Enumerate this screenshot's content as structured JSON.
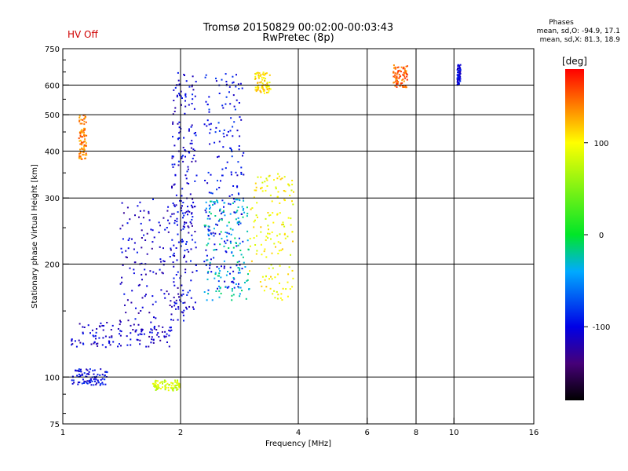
{
  "header": {
    "status": "HV Off",
    "title": "Tromsø 20150829 00:02:00-00:03:43",
    "subtitle": "RwPretec (8p)",
    "stats_title": "Phases",
    "stats_o": "mean, sd,O: -94.9, 17.1",
    "stats_x": "mean, sd,X:  81.3, 18.9"
  },
  "chart_data": {
    "type": "scatter",
    "xlabel": "Frequency [MHz]",
    "ylabel": "Stationary phase Virtual Height [km]",
    "x_scale": "log",
    "y_scale": "log",
    "xlim": [
      1,
      16
    ],
    "ylim": [
      75,
      750
    ],
    "x_ticks": [
      1,
      2,
      4,
      6,
      8,
      10,
      16
    ],
    "y_ticks": [
      75,
      100,
      200,
      300,
      400,
      500,
      600,
      750
    ],
    "x_gridlines": [
      2,
      4,
      6,
      8,
      10
    ],
    "y_gridlines": [
      100,
      200,
      300,
      400,
      500,
      600
    ],
    "colorbar": {
      "label": "[deg]",
      "range": [
        -180,
        180
      ],
      "ticks": [
        100,
        0,
        -100
      ]
    },
    "series": [
      {
        "color_phase_deg": -110,
        "x_range": [
          1.05,
          1.9
        ],
        "y_range": [
          120,
          140
        ]
      },
      {
        "color_phase_deg": -110,
        "x_range": [
          1.4,
          2.1
        ],
        "y_range": [
          140,
          300
        ]
      },
      {
        "color_phase_deg": -105,
        "x_range": [
          1.9,
          2.2
        ],
        "y_range": [
          150,
          650
        ]
      },
      {
        "color_phase_deg": -95,
        "x_range": [
          2.3,
          2.9
        ],
        "y_range": [
          170,
          650
        ]
      },
      {
        "color_phase_deg": -30,
        "x_range": [
          2.3,
          3.0
        ],
        "y_range": [
          160,
          300
        ]
      },
      {
        "color_phase_deg": 100,
        "x_range": [
          3.0,
          3.9
        ],
        "y_range": [
          160,
          350
        ]
      },
      {
        "color_phase_deg": 110,
        "x_range": [
          3.1,
          3.4
        ],
        "y_range": [
          570,
          650
        ]
      },
      {
        "color_phase_deg": 80,
        "x_range": [
          1.7,
          2.0
        ],
        "y_range": [
          92,
          98
        ]
      },
      {
        "color_phase_deg": -100,
        "x_range": [
          1.05,
          1.3
        ],
        "y_range": [
          95,
          105
        ]
      },
      {
        "color_phase_deg": 140,
        "x_range": [
          1.1,
          1.15
        ],
        "y_range": [
          380,
          500
        ]
      },
      {
        "color_phase_deg": 150,
        "x_range": [
          7.0,
          7.6
        ],
        "y_range": [
          590,
          680
        ]
      },
      {
        "color_phase_deg": -100,
        "x_range": [
          10.2,
          10.4
        ],
        "y_range": [
          600,
          680
        ]
      }
    ]
  }
}
